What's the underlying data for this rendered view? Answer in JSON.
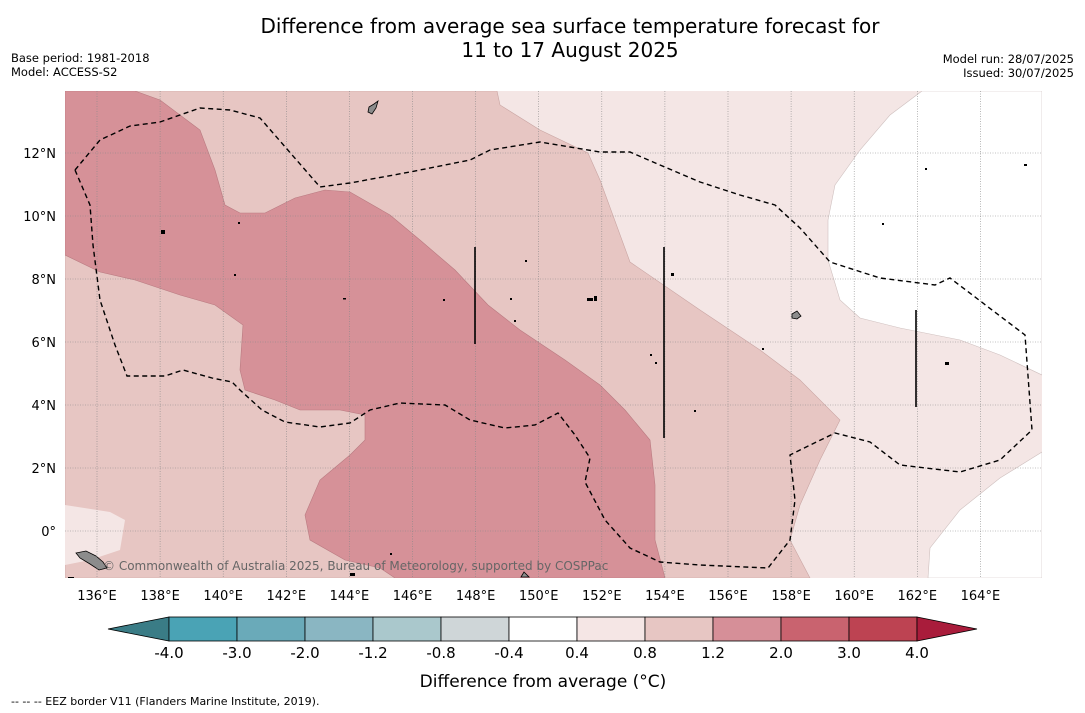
{
  "header": {
    "title_line1": "Difference from average sea surface temperature forecast for",
    "title_line2": "11 to 17 August 2025",
    "base_period": "Base period: 1981-2018",
    "model": "Model: ACCESS-S2",
    "model_run": "Model run: 28/07/2025",
    "issued": "Issued: 30/07/2025"
  },
  "map": {
    "longitude_labels": [
      "136°E",
      "138°E",
      "140°E",
      "142°E",
      "144°E",
      "146°E",
      "148°E",
      "150°E",
      "152°E",
      "154°E",
      "156°E",
      "158°E",
      "160°E",
      "162°E",
      "164°E"
    ],
    "latitude_labels": [
      "12°N",
      "10°N",
      "8°N",
      "6°N",
      "4°N",
      "2°N",
      "0°"
    ],
    "credit": "© Commonwealth of Australia 2025, Bureau of Meteorology, supported by COSPPac",
    "colors": {
      "cat_0_4_0_8": "#f4e6e5",
      "cat_0_8_1_2": "#e7c6c3",
      "cat_1_2_2_0": "#d69198",
      "land": "#8c8c8c",
      "eez_border": "#000000",
      "grid": "#888888"
    }
  },
  "colorbar": {
    "title": "Difference from average (°C)",
    "tick_labels": [
      "-4.0",
      "-3.0",
      "-2.0",
      "-1.2",
      "-0.8",
      "-0.4",
      "0.4",
      "0.8",
      "1.2",
      "2.0",
      "3.0",
      "4.0"
    ],
    "colors": [
      "#3a7c86",
      "#4aa3b5",
      "#6aaab9",
      "#8ab6c2",
      "#aac8cc",
      "#cfd6d8",
      "#ffffff",
      "#f5e6e5",
      "#e7c6c3",
      "#d68f98",
      "#c9636f",
      "#bd4352",
      "#a91c3b"
    ]
  },
  "footnote": "--  --  -- EEZ border V11 (Flanders Marine Institute, 2019)."
}
